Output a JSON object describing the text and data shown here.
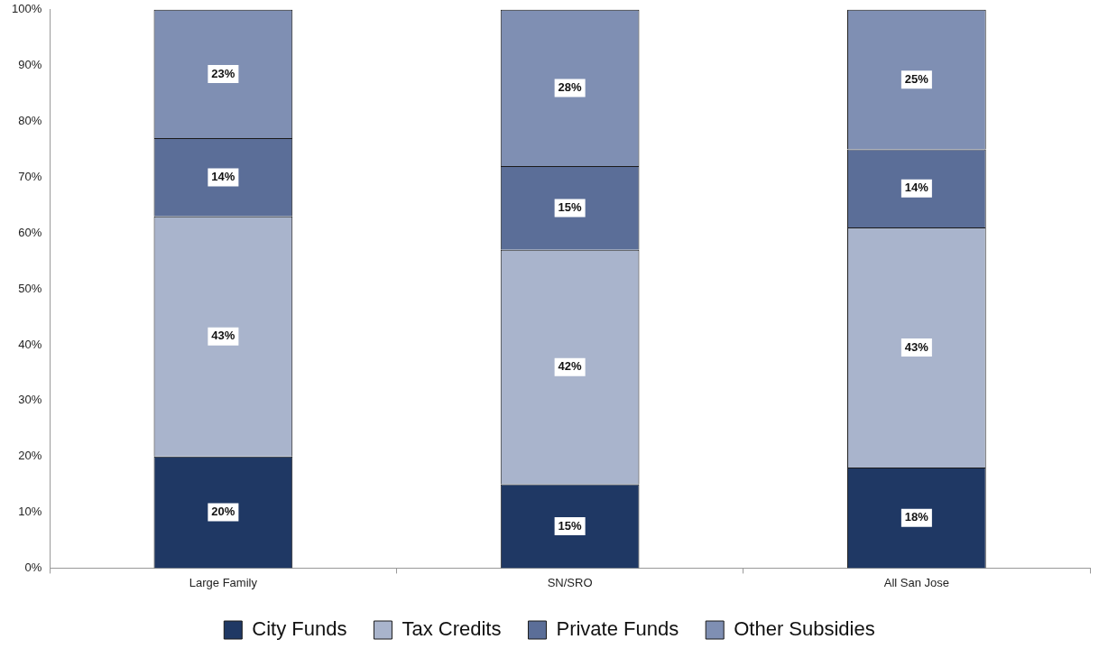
{
  "chart_data": {
    "type": "bar",
    "stacked": true,
    "categories": [
      "Large Family",
      "SN/SRO",
      "All San Jose"
    ],
    "series": [
      {
        "name": "City Funds",
        "color": "#1f3864",
        "values": [
          20,
          15,
          18
        ],
        "value_labels": [
          "20%",
          "15%",
          "18%"
        ]
      },
      {
        "name": "Tax Credits",
        "color": "#a9b4cc",
        "values": [
          43,
          42,
          43
        ],
        "value_labels": [
          "43%",
          "42%",
          "43%"
        ]
      },
      {
        "name": "Private Funds",
        "color": "#5b6e98",
        "values": [
          14,
          15,
          14
        ],
        "value_labels": [
          "14%",
          "15%",
          "14%"
        ]
      },
      {
        "name": "Other Subsidies",
        "color": "#7f8fb3",
        "values": [
          23,
          28,
          25
        ],
        "value_labels": [
          "23%",
          "28%",
          "25%"
        ]
      }
    ],
    "ylim": [
      0,
      100
    ],
    "yticks": [
      {
        "value": 0,
        "label": "0%"
      },
      {
        "value": 10,
        "label": "10%"
      },
      {
        "value": 20,
        "label": "20%"
      },
      {
        "value": 30,
        "label": "30%"
      },
      {
        "value": 40,
        "label": "40%"
      },
      {
        "value": 50,
        "label": "50%"
      },
      {
        "value": 60,
        "label": "60%"
      },
      {
        "value": 70,
        "label": "70%"
      },
      {
        "value": 80,
        "label": "80%"
      },
      {
        "value": 90,
        "label": "90%"
      },
      {
        "value": 100,
        "label": "100%"
      }
    ],
    "grid": false,
    "legend": "bottom"
  }
}
